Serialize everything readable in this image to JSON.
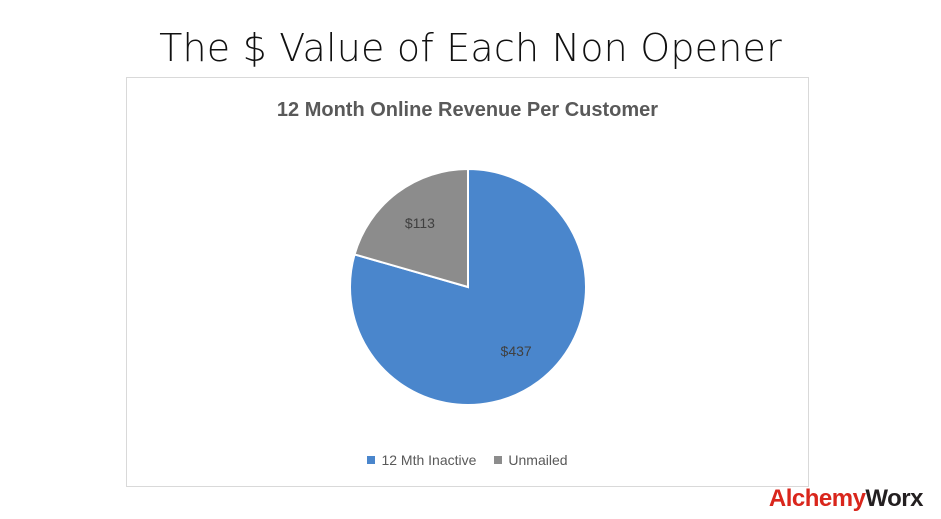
{
  "slide": {
    "title": "The $ Value of Each Non Opener"
  },
  "brand": {
    "part1": "Alchemy",
    "part2": "Worx",
    "color1": "#d9261c",
    "color2": "#231f20"
  },
  "chart_data": {
    "type": "pie",
    "title": "12 Month Online Revenue Per Customer",
    "categories": [
      "12 Mth Inactive",
      "Unmailed"
    ],
    "values": [
      437,
      113
    ],
    "labels": [
      "$437",
      "$113"
    ],
    "colors": [
      "#4a86cc",
      "#8c8c8c"
    ],
    "legend": "bottom",
    "start": "top-clockwise"
  }
}
